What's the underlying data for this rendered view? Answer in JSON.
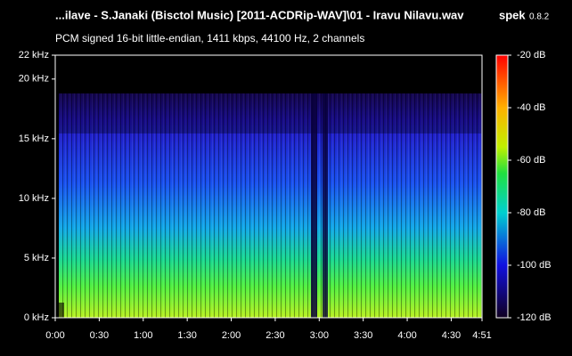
{
  "chart_data": {
    "type": "spectrogram",
    "title": "...ilave - S.Janaki (Bisctol Music) [2011-ACDRip-WAV]\\01 - Iravu Nilavu.wav",
    "app": "spek",
    "version": "0.8.2",
    "subtitle": "PCM signed 16-bit little-endian, 1411 kbps, 44100 Hz, 2 channels",
    "xlim": [
      0,
      291
    ],
    "xticks": [
      {
        "value": 0,
        "label": "0:00"
      },
      {
        "value": 30,
        "label": "0:30"
      },
      {
        "value": 60,
        "label": "1:00"
      },
      {
        "value": 90,
        "label": "1:30"
      },
      {
        "value": 120,
        "label": "2:00"
      },
      {
        "value": 150,
        "label": "2:30"
      },
      {
        "value": 180,
        "label": "3:00"
      },
      {
        "value": 210,
        "label": "3:30"
      },
      {
        "value": 240,
        "label": "4:00"
      },
      {
        "value": 270,
        "label": "4:30"
      },
      {
        "value": 291,
        "label": "4:51"
      }
    ],
    "ylim": [
      0,
      22
    ],
    "yticks": [
      {
        "value": 0,
        "label": "0 kHz"
      },
      {
        "value": 5,
        "label": "5 kHz"
      },
      {
        "value": 10,
        "label": "10 kHz"
      },
      {
        "value": 15,
        "label": "15 kHz"
      },
      {
        "value": 20,
        "label": "20 kHz"
      },
      {
        "value": 22,
        "label": "22 kHz"
      }
    ],
    "colorbar": {
      "lim": [
        -120,
        -20
      ],
      "ticks": [
        {
          "value": -20,
          "label": "-20 dB"
        },
        {
          "value": -40,
          "label": "-40 dB"
        },
        {
          "value": -60,
          "label": "-60 dB"
        },
        {
          "value": -80,
          "label": "-80 dB"
        },
        {
          "value": -100,
          "label": "-100 dB"
        },
        {
          "value": -120,
          "label": "-120 dB"
        }
      ]
    }
  }
}
